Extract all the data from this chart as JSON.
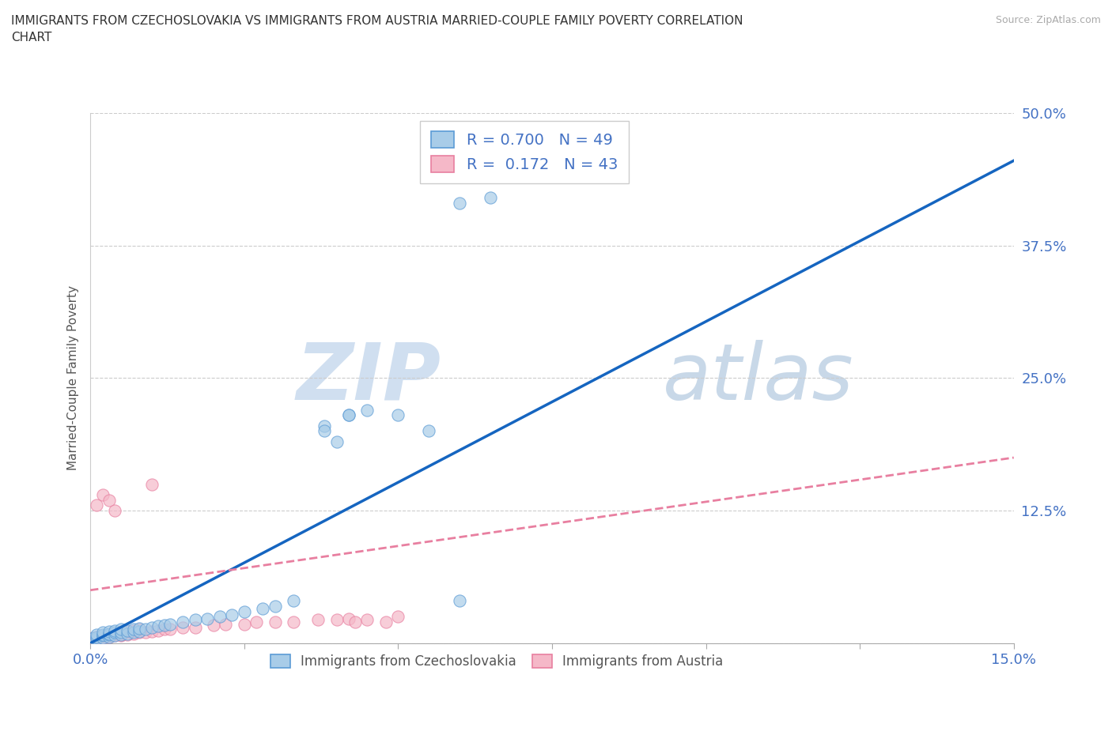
{
  "title": "IMMIGRANTS FROM CZECHOSLOVAKIA VS IMMIGRANTS FROM AUSTRIA MARRIED-COUPLE FAMILY POVERTY CORRELATION\nCHART",
  "source": "Source: ZipAtlas.com",
  "ylabel_text": "Married-Couple Family Poverty",
  "xlim": [
    0.0,
    0.15
  ],
  "ylim": [
    0.0,
    0.5
  ],
  "xtick_positions": [
    0.0,
    0.025,
    0.05,
    0.075,
    0.1,
    0.125,
    0.15
  ],
  "ytick_positions": [
    0.0,
    0.125,
    0.25,
    0.375,
    0.5
  ],
  "color_czech": "#a8cce8",
  "color_austria": "#f5b8c8",
  "edge_czech": "#5b9bd5",
  "edge_austria": "#e87fa0",
  "line_color_czech": "#1565C0",
  "line_color_austria": "#e87fa0",
  "R_czech": 0.7,
  "N_czech": 49,
  "R_austria": 0.172,
  "N_austria": 43,
  "watermark_zip": "ZIP",
  "watermark_atlas": "atlas",
  "legend_label_czech": "Immigrants from Czechoslovakia",
  "legend_label_austria": "Immigrants from Austria",
  "tick_label_color": "#4472C4",
  "czech_x": [
    0.0005,
    0.001,
    0.001,
    0.001,
    0.002,
    0.002,
    0.002,
    0.002,
    0.003,
    0.003,
    0.003,
    0.003,
    0.004,
    0.004,
    0.004,
    0.005,
    0.005,
    0.005,
    0.006,
    0.006,
    0.007,
    0.007,
    0.008,
    0.008,
    0.009,
    0.01,
    0.011,
    0.012,
    0.013,
    0.015,
    0.017,
    0.019,
    0.021,
    0.023,
    0.025,
    0.028,
    0.03,
    0.033,
    0.038,
    0.04,
    0.042,
    0.045,
    0.05,
    0.055,
    0.06,
    0.065,
    0.038,
    0.042,
    0.06
  ],
  "czech_y": [
    0.005,
    0.004,
    0.006,
    0.008,
    0.005,
    0.007,
    0.008,
    0.01,
    0.006,
    0.008,
    0.009,
    0.011,
    0.007,
    0.01,
    0.012,
    0.008,
    0.01,
    0.013,
    0.009,
    0.012,
    0.01,
    0.013,
    0.011,
    0.014,
    0.013,
    0.015,
    0.016,
    0.017,
    0.018,
    0.02,
    0.022,
    0.023,
    0.025,
    0.027,
    0.03,
    0.033,
    0.035,
    0.04,
    0.205,
    0.19,
    0.215,
    0.22,
    0.215,
    0.2,
    0.415,
    0.42,
    0.2,
    0.215,
    0.04
  ],
  "austria_x": [
    0.0005,
    0.001,
    0.001,
    0.001,
    0.002,
    0.002,
    0.002,
    0.003,
    0.003,
    0.003,
    0.004,
    0.004,
    0.004,
    0.005,
    0.005,
    0.005,
    0.006,
    0.006,
    0.007,
    0.007,
    0.008,
    0.008,
    0.009,
    0.01,
    0.01,
    0.011,
    0.012,
    0.013,
    0.015,
    0.017,
    0.02,
    0.022,
    0.025,
    0.027,
    0.03,
    0.033,
    0.037,
    0.04,
    0.042,
    0.043,
    0.045,
    0.048,
    0.05
  ],
  "austria_y": [
    0.005,
    0.004,
    0.006,
    0.13,
    0.005,
    0.007,
    0.14,
    0.006,
    0.008,
    0.135,
    0.007,
    0.009,
    0.125,
    0.007,
    0.01,
    0.008,
    0.008,
    0.011,
    0.009,
    0.012,
    0.01,
    0.013,
    0.01,
    0.011,
    0.15,
    0.012,
    0.013,
    0.013,
    0.015,
    0.015,
    0.017,
    0.018,
    0.018,
    0.02,
    0.02,
    0.02,
    0.022,
    0.022,
    0.023,
    0.02,
    0.022,
    0.02,
    0.025
  ],
  "czech_line_x0": 0.0,
  "czech_line_y0": 0.0,
  "czech_line_x1": 0.15,
  "czech_line_y1": 0.455,
  "austria_line_x0": 0.0,
  "austria_line_y0": 0.05,
  "austria_line_x1": 0.15,
  "austria_line_y1": 0.175
}
